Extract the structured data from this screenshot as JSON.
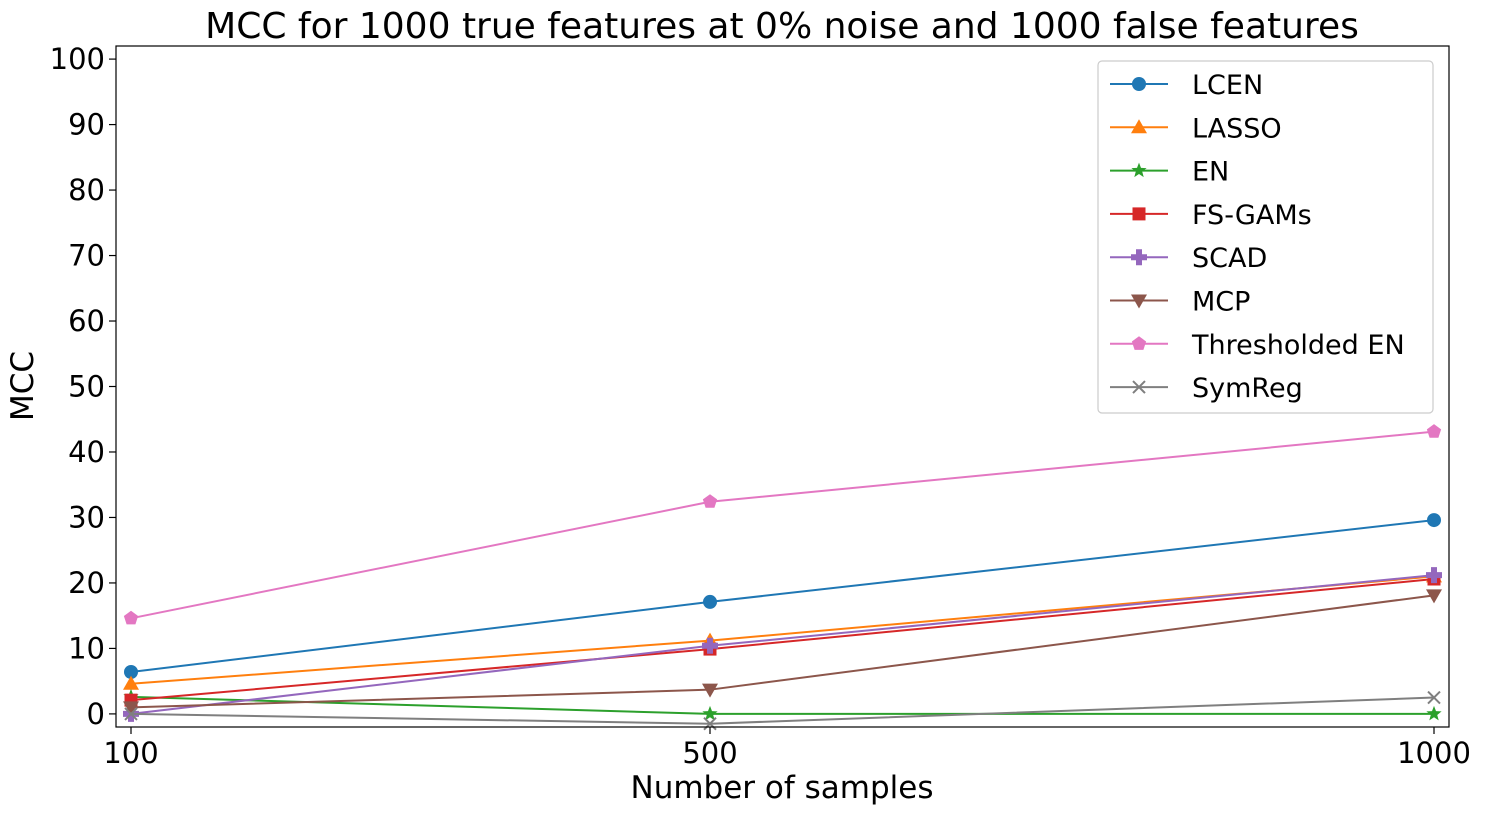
{
  "chart_data": {
    "type": "line",
    "title": "MCC for 1000 true features at 0% noise and 1000 false features",
    "xlabel": "Number of samples",
    "ylabel": "MCC",
    "x": [
      100,
      500,
      1000
    ],
    "x_ticks": [
      "100",
      "500",
      "1000"
    ],
    "y_ticks": [
      "0",
      "10",
      "20",
      "30",
      "40",
      "50",
      "60",
      "70",
      "80",
      "90",
      "100"
    ],
    "ylim": [
      -2,
      102
    ],
    "grid": false,
    "legend_position": "top-right",
    "series": [
      {
        "name": "LCEN",
        "color": "#1f77b4",
        "marker": "circle",
        "values": [
          6.4,
          17.1,
          29.6
        ]
      },
      {
        "name": "LASSO",
        "color": "#ff7f0e",
        "marker": "triangle-up",
        "values": [
          4.6,
          11.2,
          21.0
        ]
      },
      {
        "name": "EN",
        "color": "#2ca02c",
        "marker": "star",
        "values": [
          2.6,
          0.0,
          0.0
        ]
      },
      {
        "name": "FS-GAMs",
        "color": "#d62728",
        "marker": "square",
        "values": [
          2.1,
          9.9,
          20.6
        ]
      },
      {
        "name": "SCAD",
        "color": "#9467bd",
        "marker": "plus",
        "values": [
          0.0,
          10.4,
          21.2
        ]
      },
      {
        "name": "MCP",
        "color": "#8c564b",
        "marker": "triangle-down",
        "values": [
          1.0,
          3.7,
          18.1
        ]
      },
      {
        "name": "Thresholded EN",
        "color": "#e377c2",
        "marker": "pentagon",
        "values": [
          14.6,
          32.4,
          43.1
        ]
      },
      {
        "name": "SymReg",
        "color": "#7f7f7f",
        "marker": "x",
        "values": [
          0.0,
          -1.5,
          2.5
        ]
      }
    ]
  }
}
